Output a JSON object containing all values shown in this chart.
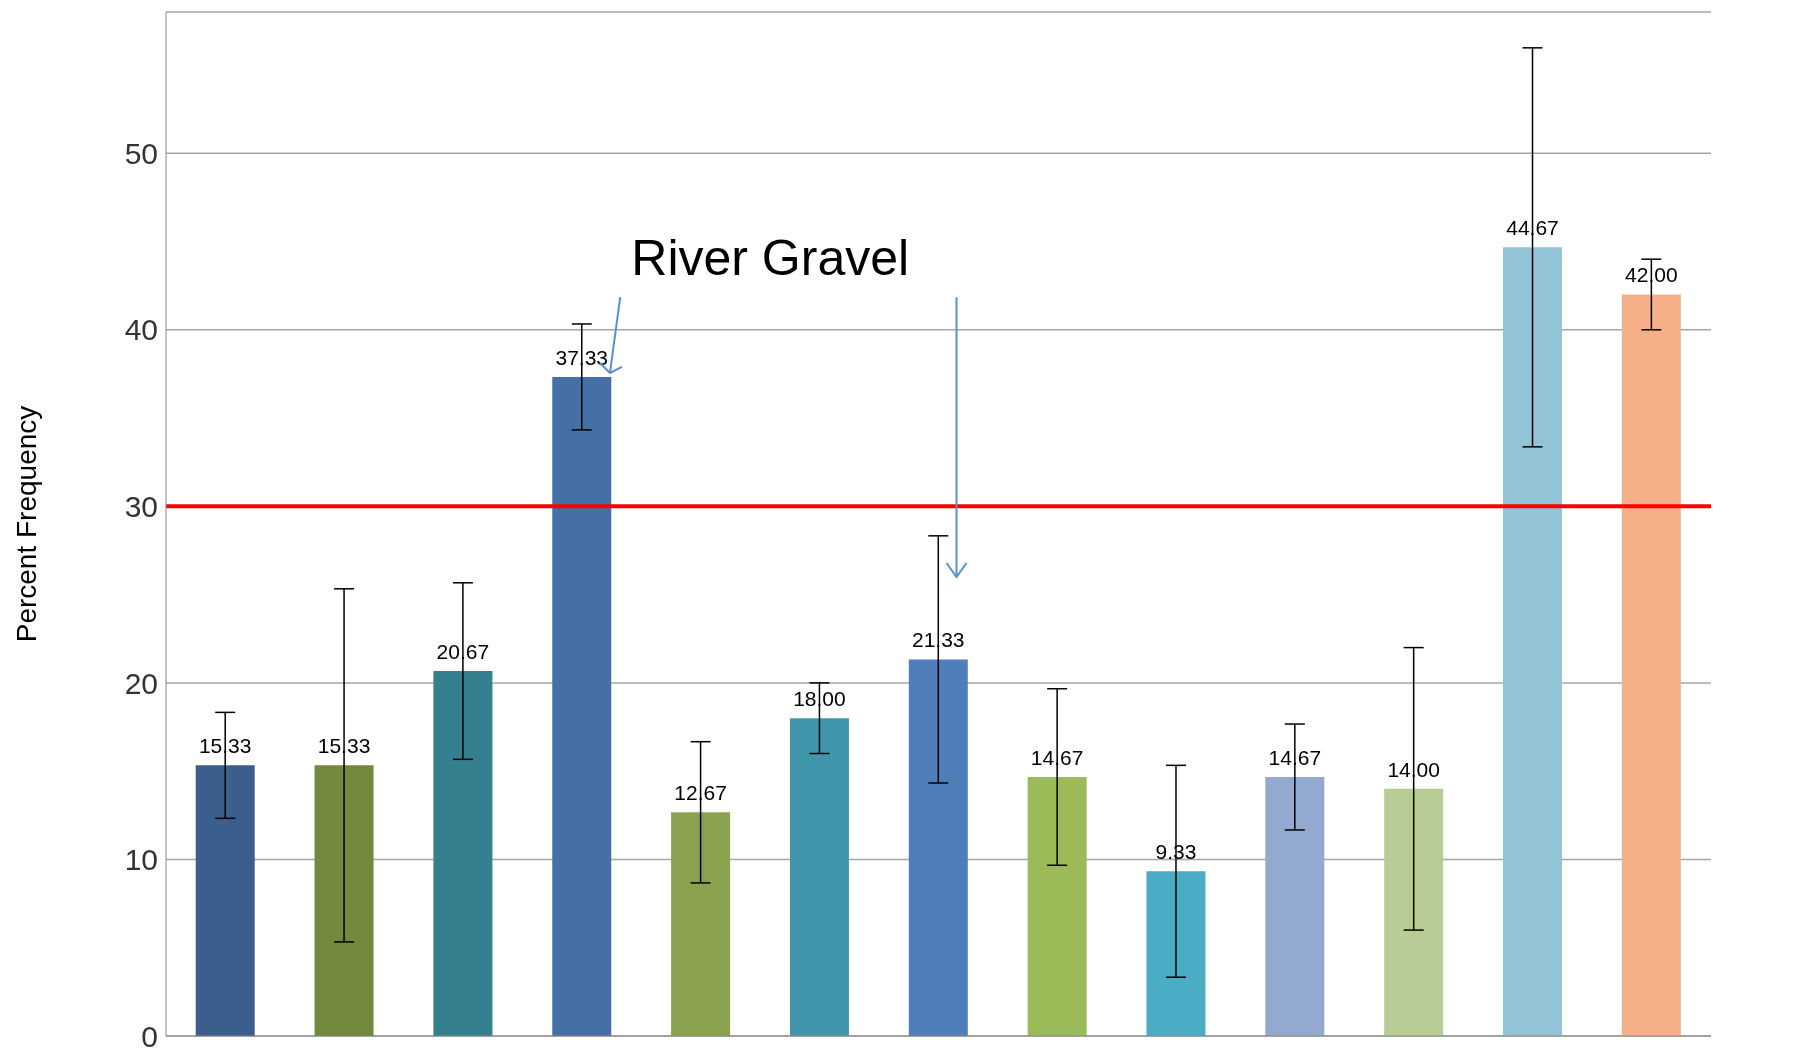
{
  "chart_data": {
    "type": "bar",
    "ylabel": "Percent Frequency",
    "categories": [
      null,
      null,
      null,
      null,
      null,
      null,
      null,
      null,
      null,
      null,
      null,
      null,
      null
    ],
    "values": [
      15.33,
      15.33,
      20.67,
      37.33,
      12.67,
      18.0,
      21.33,
      14.67,
      9.33,
      14.67,
      14.0,
      44.67,
      42.0
    ],
    "value_labels": [
      "15.33",
      "15.33",
      "20.67",
      "37.33",
      "12.67",
      "18.00",
      "21.33",
      "14.67",
      "9.33",
      "14.67",
      "14.00",
      "44.67",
      "42.00"
    ],
    "errors": [
      3,
      10,
      5,
      3,
      4,
      2,
      7,
      5,
      6,
      3,
      8,
      11.3,
      2
    ],
    "colors": [
      "#3a5f8d",
      "#72893e",
      "#35808f",
      "#4470a6",
      "#8aa24d",
      "#4097ab",
      "#4f7ebb",
      "#9bbb59",
      "#4bacc6",
      "#93a9cf",
      "#b8cd95",
      "#92c3d6",
      "#f7af89"
    ],
    "ylim": [
      0,
      58
    ],
    "yticks": [
      0,
      10,
      20,
      30,
      40,
      50
    ],
    "grid": "y",
    "legend": false,
    "tick_labels": "y",
    "ref_lines": [
      {
        "axis": "y",
        "value": 30,
        "color": "#ff0000"
      }
    ],
    "annotations": [
      "River Gravel"
    ]
  }
}
